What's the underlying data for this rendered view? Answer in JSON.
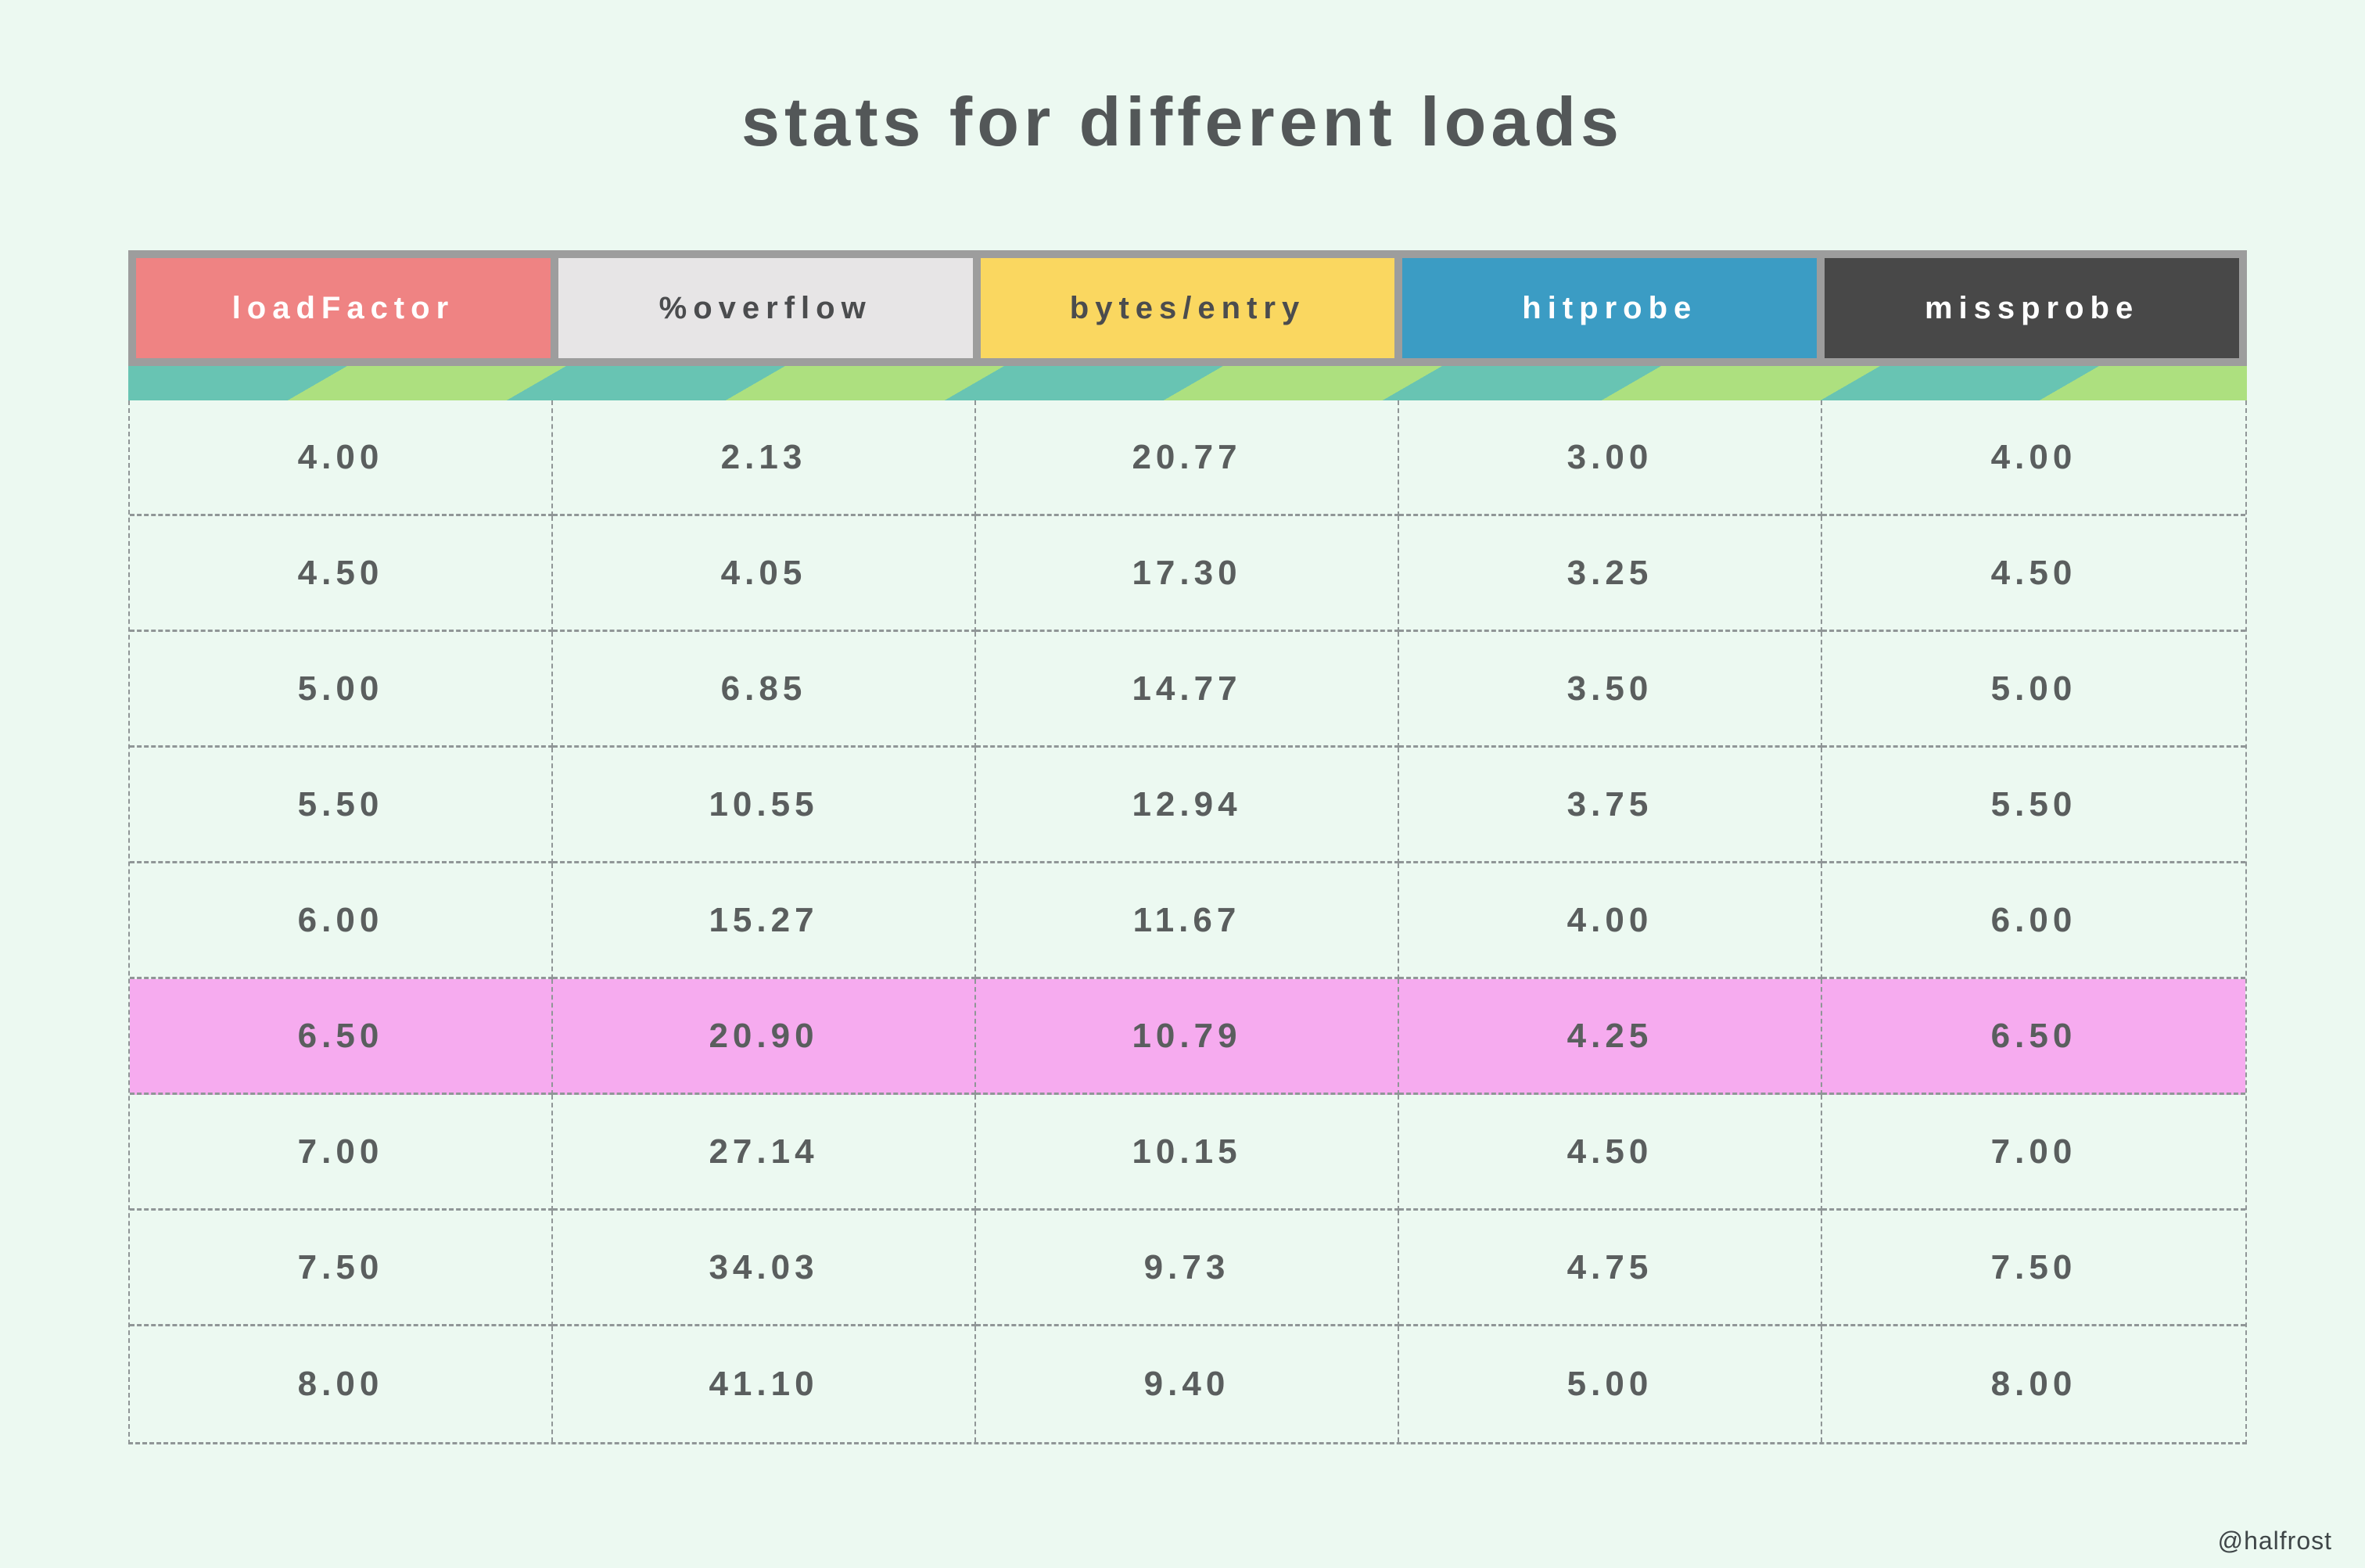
{
  "title": "stats for different loads",
  "credit": "@halfrost",
  "colors": {
    "page_background": "#ecf9f1",
    "title_text": "#535758",
    "cell_text": "#5a5e5e",
    "dash_line": "#909697",
    "header_frame": "#9d9d9d",
    "stripe_teal": "#68c4b3",
    "stripe_green": "#ade07f",
    "highlight_pink": "#f6abef"
  },
  "table": {
    "columns": [
      {
        "label": "loadFactor",
        "bg": "#ef8383",
        "fg": "#ffffff"
      },
      {
        "label": "%overflow",
        "bg": "#e7e5e6",
        "fg": "#4b4c4e"
      },
      {
        "label": "bytes/entry",
        "bg": "#fad760",
        "fg": "#4b4c4e"
      },
      {
        "label": "hitprobe",
        "bg": "#3b9cc4",
        "fg": "#ffffff"
      },
      {
        "label": "missprobe",
        "bg": "#484848",
        "fg": "#ffffff"
      }
    ],
    "rows": [
      [
        "4.00",
        "2.13",
        "20.77",
        "3.00",
        "4.00"
      ],
      [
        "4.50",
        "4.05",
        "17.30",
        "3.25",
        "4.50"
      ],
      [
        "5.00",
        "6.85",
        "14.77",
        "3.50",
        "5.00"
      ],
      [
        "5.50",
        "10.55",
        "12.94",
        "3.75",
        "5.50"
      ],
      [
        "6.00",
        "15.27",
        "11.67",
        "4.00",
        "6.00"
      ],
      [
        "6.50",
        "20.90",
        "10.79",
        "4.25",
        "6.50"
      ],
      [
        "7.00",
        "27.14",
        "10.15",
        "4.50",
        "7.00"
      ],
      [
        "7.50",
        "34.03",
        "9.73",
        "4.75",
        "7.50"
      ],
      [
        "8.00",
        "41.10",
        "9.40",
        "5.00",
        "8.00"
      ]
    ],
    "highlighted_row_index": 5
  },
  "chart_data": {
    "type": "table",
    "title": "stats for different loads",
    "columns": [
      "loadFactor",
      "%overflow",
      "bytes/entry",
      "hitprobe",
      "missprobe"
    ],
    "rows": [
      [
        4.0,
        2.13,
        20.77,
        3.0,
        4.0
      ],
      [
        4.5,
        4.05,
        17.3,
        3.25,
        4.5
      ],
      [
        5.0,
        6.85,
        14.77,
        3.5,
        5.0
      ],
      [
        5.5,
        10.55,
        12.94,
        3.75,
        5.5
      ],
      [
        6.0,
        15.27,
        11.67,
        4.0,
        6.0
      ],
      [
        6.5,
        20.9,
        10.79,
        4.25,
        6.5
      ],
      [
        7.0,
        27.14,
        10.15,
        4.5,
        7.0
      ],
      [
        7.5,
        34.03,
        9.73,
        4.75,
        7.5
      ],
      [
        8.0,
        41.1,
        9.4,
        5.0,
        8.0
      ]
    ],
    "highlighted_row": [
      6.5,
      20.9,
      10.79,
      4.25,
      6.5
    ],
    "annotations": [
      "row with loadFactor 6.50 is highlighted pink"
    ],
    "legend_position": "none",
    "grid": "dashed"
  }
}
